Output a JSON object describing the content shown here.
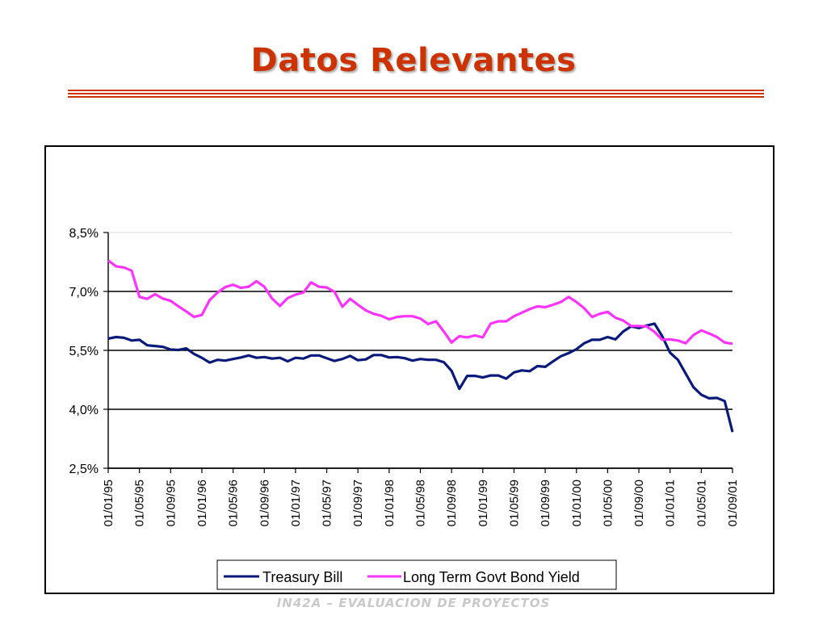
{
  "slide": {
    "title": "Datos Relevantes",
    "footer": "IN42A – EVALUACION DE PROYECTOS"
  },
  "colors": {
    "title": "#cc3300",
    "treasury_bill": "#0a1a7a",
    "long_term_bond": "#ff33ff"
  },
  "chart_data": {
    "type": "line",
    "title": "",
    "xlabel": "",
    "ylabel": "",
    "ylim": [
      0.025,
      0.085
    ],
    "yticks": [
      0.025,
      0.04,
      0.055,
      0.07,
      0.085
    ],
    "ytick_labels": [
      "2,5%",
      "4,0%",
      "5,5%",
      "7,0%",
      "8,5%"
    ],
    "xtick_labels": [
      "01/01/95",
      "01/05/95",
      "01/09/95",
      "01/01/96",
      "01/05/96",
      "01/09/96",
      "01/01/97",
      "01/05/97",
      "01/09/97",
      "01/01/98",
      "01/05/98",
      "01/09/98",
      "01/01/99",
      "01/05/99",
      "01/09/99",
      "01/01/00",
      "01/05/00",
      "01/09/00",
      "01/01/01",
      "01/05/01",
      "01/09/01"
    ],
    "grid": "horizontal",
    "legend": "bottom",
    "series": [
      {
        "name": "Treasury Bill",
        "values": [
          0.058,
          0.0584,
          0.0582,
          0.0575,
          0.0577,
          0.0563,
          0.0561,
          0.0559,
          0.0552,
          0.0551,
          0.0555,
          0.0541,
          0.0531,
          0.0519,
          0.0526,
          0.0524,
          0.0528,
          0.0532,
          0.0537,
          0.0531,
          0.0533,
          0.0529,
          0.0531,
          0.0522,
          0.0531,
          0.0529,
          0.0537,
          0.0537,
          0.053,
          0.0523,
          0.0528,
          0.0536,
          0.0525,
          0.0527,
          0.0538,
          0.0538,
          0.0532,
          0.0533,
          0.053,
          0.0524,
          0.0528,
          0.0526,
          0.0526,
          0.052,
          0.0498,
          0.0452,
          0.0485,
          0.0485,
          0.0481,
          0.0486,
          0.0486,
          0.0478,
          0.0494,
          0.0499,
          0.0497,
          0.051,
          0.0508,
          0.0522,
          0.0535,
          0.0543,
          0.0553,
          0.0568,
          0.0577,
          0.0577,
          0.0584,
          0.0578,
          0.0598,
          0.0611,
          0.0607,
          0.0613,
          0.0618,
          0.0586,
          0.0544,
          0.0526,
          0.0491,
          0.0456,
          0.0437,
          0.0428,
          0.0429,
          0.0421,
          0.0342
        ]
      },
      {
        "name": "Long Term Govt Bond Yield",
        "values": [
          0.0779,
          0.0764,
          0.0761,
          0.0753,
          0.0686,
          0.0681,
          0.0693,
          0.0682,
          0.0676,
          0.0662,
          0.0649,
          0.0635,
          0.064,
          0.0678,
          0.0697,
          0.0711,
          0.0717,
          0.0709,
          0.0712,
          0.0726,
          0.0712,
          0.0682,
          0.0663,
          0.0683,
          0.0692,
          0.0697,
          0.0723,
          0.0712,
          0.071,
          0.0699,
          0.0661,
          0.0681,
          0.0666,
          0.0652,
          0.0643,
          0.0638,
          0.0629,
          0.0635,
          0.0637,
          0.0637,
          0.0631,
          0.0617,
          0.0624,
          0.0598,
          0.057,
          0.0586,
          0.0583,
          0.0588,
          0.0583,
          0.0618,
          0.0624,
          0.0624,
          0.0637,
          0.0646,
          0.0655,
          0.0662,
          0.066,
          0.0666,
          0.0673,
          0.0686,
          0.0673,
          0.0657,
          0.0635,
          0.0643,
          0.0648,
          0.0633,
          0.0626,
          0.0612,
          0.0612,
          0.0611,
          0.0597,
          0.0577,
          0.0578,
          0.0575,
          0.0568,
          0.0589,
          0.0601,
          0.0593,
          0.0584,
          0.057,
          0.0567
        ]
      }
    ]
  }
}
